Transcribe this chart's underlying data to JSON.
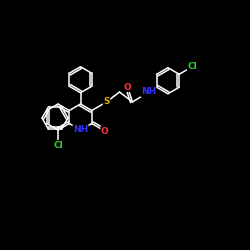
{
  "background_color": "#000000",
  "bond_color": "#FFFFFF",
  "atom_colors": {
    "O": "#FF3333",
    "N": "#3333FF",
    "S": "#CCAA00",
    "Cl": "#33CC33",
    "C": "#FFFFFF",
    "H": "#FFFFFF"
  },
  "font_size": 6.5,
  "fig_size": [
    2.5,
    2.5
  ],
  "dpi": 100
}
